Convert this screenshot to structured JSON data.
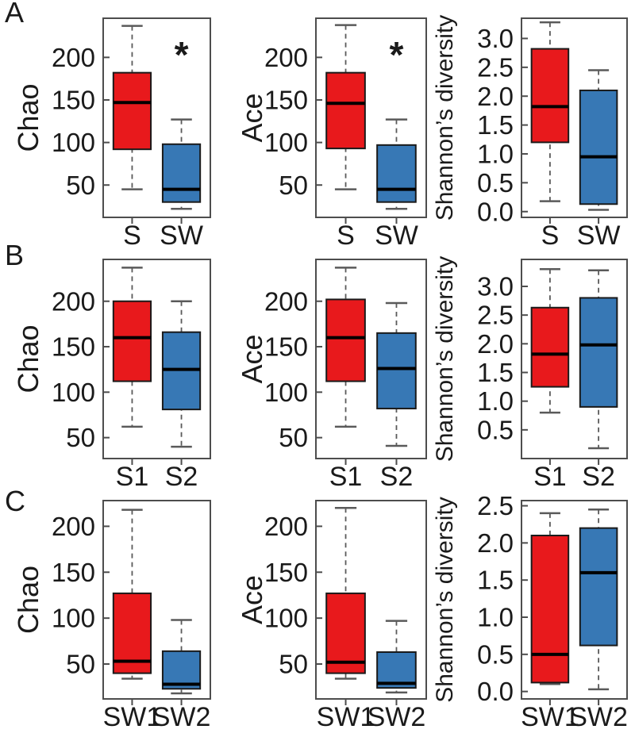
{
  "figure": {
    "panels": [
      {
        "label": "A"
      },
      {
        "label": "B"
      },
      {
        "label": "C"
      }
    ]
  },
  "colors": {
    "box_red": "#e8191c",
    "box_blue": "#3778b5",
    "axis": "#4d4d4d",
    "whisker": "#5a5a5a",
    "median": "#000000",
    "text": "#1a1a1a"
  },
  "chart_data": [
    {
      "type": "boxplot",
      "panel": "A",
      "ylabel": "Chao",
      "ylim": [
        12,
        246
      ],
      "yticks": [
        50,
        100,
        150,
        200
      ],
      "ytick_labels": [
        "50",
        "100",
        "150",
        "200"
      ],
      "categories": [
        "S",
        "SW"
      ],
      "series": [
        {
          "name": "S",
          "color": "red",
          "whisker_min": 45,
          "q1": 92,
          "median": 147,
          "q3": 182,
          "whisker_max": 237
        },
        {
          "name": "SW",
          "color": "blue",
          "whisker_min": 22,
          "q1": 30,
          "median": 45,
          "q3": 98,
          "whisker_max": 127
        }
      ],
      "significance": {
        "text": "*",
        "category": "SW"
      }
    },
    {
      "type": "boxplot",
      "panel": "A",
      "ylabel": "Ace",
      "ylim": [
        12,
        246
      ],
      "yticks": [
        50,
        100,
        150,
        200
      ],
      "ytick_labels": [
        "50",
        "100",
        "150",
        "200"
      ],
      "categories": [
        "S",
        "SW"
      ],
      "series": [
        {
          "name": "S",
          "color": "red",
          "whisker_min": 45,
          "q1": 93,
          "median": 146,
          "q3": 182,
          "whisker_max": 238
        },
        {
          "name": "SW",
          "color": "blue",
          "whisker_min": 22,
          "q1": 30,
          "median": 45,
          "q3": 97,
          "whisker_max": 127
        }
      ],
      "significance": {
        "text": "*",
        "category": "SW"
      }
    },
    {
      "type": "boxplot",
      "panel": "A",
      "ylabel": "Shannon’s diversity",
      "ylim": [
        -0.1,
        3.35
      ],
      "yticks": [
        0,
        0.5,
        1,
        1.5,
        2,
        2.5,
        3
      ],
      "ytick_labels": [
        "0.0",
        "0.5",
        "1.0",
        "1.5",
        "2.0",
        "2.5",
        "3.0"
      ],
      "categories": [
        "S",
        "SW"
      ],
      "series": [
        {
          "name": "S",
          "color": "red",
          "whisker_min": 0.18,
          "q1": 1.2,
          "median": 1.82,
          "q3": 2.82,
          "whisker_max": 3.28
        },
        {
          "name": "SW",
          "color": "blue",
          "whisker_min": 0.03,
          "q1": 0.13,
          "median": 0.95,
          "q3": 2.1,
          "whisker_max": 2.45
        }
      ]
    },
    {
      "type": "boxplot",
      "panel": "B",
      "ylabel": "Chao",
      "ylim": [
        27,
        246
      ],
      "yticks": [
        50,
        100,
        150,
        200
      ],
      "ytick_labels": [
        "50",
        "100",
        "150",
        "200"
      ],
      "categories": [
        "S1",
        "S2"
      ],
      "series": [
        {
          "name": "S1",
          "color": "red",
          "whisker_min": 62,
          "q1": 112,
          "median": 160,
          "q3": 200,
          "whisker_max": 237
        },
        {
          "name": "S2",
          "color": "blue",
          "whisker_min": 40,
          "q1": 81,
          "median": 125,
          "q3": 166,
          "whisker_max": 200
        }
      ]
    },
    {
      "type": "boxplot",
      "panel": "B",
      "ylabel": "Ace",
      "ylim": [
        27,
        246
      ],
      "yticks": [
        50,
        100,
        150,
        200
      ],
      "ytick_labels": [
        "50",
        "100",
        "150",
        "200"
      ],
      "categories": [
        "S1",
        "S2"
      ],
      "series": [
        {
          "name": "S1",
          "color": "red",
          "whisker_min": 62,
          "q1": 112,
          "median": 160,
          "q3": 202,
          "whisker_max": 237
        },
        {
          "name": "S2",
          "color": "blue",
          "whisker_min": 41,
          "q1": 82,
          "median": 126,
          "q3": 165,
          "whisker_max": 198
        }
      ]
    },
    {
      "type": "boxplot",
      "panel": "B",
      "ylabel": "Shannon’s diversity",
      "ylim": [
        0,
        3.47
      ],
      "yticks": [
        0.5,
        1,
        1.5,
        2,
        2.5,
        3
      ],
      "ytick_labels": [
        "0.5",
        "1.0",
        "1.5",
        "2.0",
        "2.5",
        "3.0"
      ],
      "categories": [
        "S1",
        "S2"
      ],
      "series": [
        {
          "name": "S1",
          "color": "red",
          "whisker_min": 0.8,
          "q1": 1.25,
          "median": 1.82,
          "q3": 2.63,
          "whisker_max": 3.3
        },
        {
          "name": "S2",
          "color": "blue",
          "whisker_min": 0.18,
          "q1": 0.9,
          "median": 1.98,
          "q3": 2.8,
          "whisker_max": 3.28
        }
      ]
    },
    {
      "type": "boxplot",
      "panel": "C",
      "ylabel": "Chao",
      "ylim": [
        12,
        228
      ],
      "yticks": [
        50,
        100,
        150,
        200
      ],
      "ytick_labels": [
        "50",
        "100",
        "150",
        "200"
      ],
      "categories": [
        "SW1",
        "SW2"
      ],
      "series": [
        {
          "name": "SW1",
          "color": "red",
          "whisker_min": 34,
          "q1": 40,
          "median": 53,
          "q3": 127,
          "whisker_max": 218
        },
        {
          "name": "SW2",
          "color": "blue",
          "whisker_min": 18,
          "q1": 23,
          "median": 28,
          "q3": 64,
          "whisker_max": 98
        }
      ]
    },
    {
      "type": "boxplot",
      "panel": "C",
      "ylabel": "Ace",
      "ylim": [
        12,
        228
      ],
      "yticks": [
        50,
        100,
        150,
        200
      ],
      "ytick_labels": [
        "50",
        "100",
        "150",
        "200"
      ],
      "categories": [
        "SW1",
        "SW2"
      ],
      "series": [
        {
          "name": "SW1",
          "color": "red",
          "whisker_min": 34,
          "q1": 40,
          "median": 52,
          "q3": 127,
          "whisker_max": 220
        },
        {
          "name": "SW2",
          "color": "blue",
          "whisker_min": 19,
          "q1": 24,
          "median": 29,
          "q3": 63,
          "whisker_max": 97
        }
      ]
    },
    {
      "type": "boxplot",
      "panel": "C",
      "ylabel": "Shannon’s diversity",
      "ylim": [
        -0.1,
        2.57
      ],
      "yticks": [
        0,
        0.5,
        1,
        1.5,
        2,
        2.5
      ],
      "ytick_labels": [
        "0.0",
        "0.5",
        "1.0",
        "1.5",
        "2.0",
        "2.5"
      ],
      "categories": [
        "SW1",
        "SW2"
      ],
      "series": [
        {
          "name": "SW1",
          "color": "red",
          "whisker_min": 0.1,
          "q1": 0.12,
          "median": 0.5,
          "q3": 2.1,
          "whisker_max": 2.4
        },
        {
          "name": "SW2",
          "color": "blue",
          "whisker_min": 0.03,
          "q1": 0.62,
          "median": 1.6,
          "q3": 2.2,
          "whisker_max": 2.45
        }
      ]
    }
  ]
}
